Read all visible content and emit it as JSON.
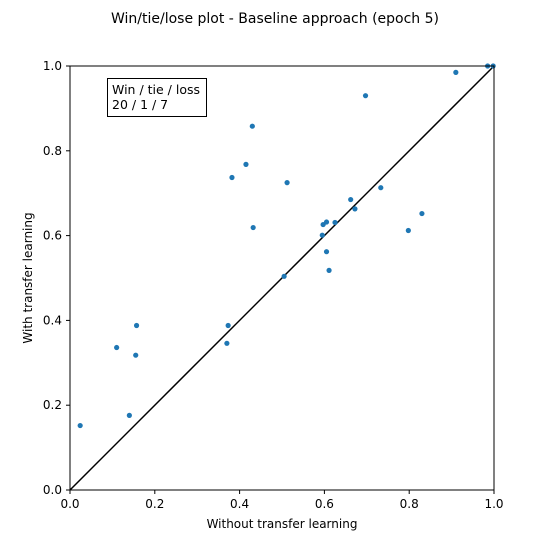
{
  "chart_data": {
    "type": "scatter",
    "title": "Win/tie/lose plot - Baseline approach (epoch 5)",
    "xlabel": "Without transfer learning",
    "ylabel": "With transfer learning",
    "xlim": [
      0,
      1
    ],
    "ylim": [
      0,
      1
    ],
    "xticks": [
      0.0,
      0.2,
      0.4,
      0.6,
      0.8,
      1.0
    ],
    "yticks": [
      0.0,
      0.2,
      0.4,
      0.6,
      0.8,
      1.0
    ],
    "xtick_labels": [
      "0.0",
      "0.2",
      "0.4",
      "0.6",
      "0.8",
      "1.0"
    ],
    "ytick_labels": [
      "0.0",
      "0.2",
      "0.4",
      "0.6",
      "0.8",
      "1.0"
    ],
    "grid": false,
    "reference_line": "diagonal y = x",
    "point_color": "#1f77b4",
    "line_color": "#000000",
    "annotation": {
      "line1": "Win / tie / loss",
      "line2": "20 / 1 / 7",
      "placement": "top-left"
    },
    "points": [
      {
        "x": 0.024,
        "y": 0.152
      },
      {
        "x": 0.11,
        "y": 0.336
      },
      {
        "x": 0.14,
        "y": 0.176
      },
      {
        "x": 0.155,
        "y": 0.318
      },
      {
        "x": 0.157,
        "y": 0.388
      },
      {
        "x": 0.37,
        "y": 0.346
      },
      {
        "x": 0.373,
        "y": 0.388
      },
      {
        "x": 0.382,
        "y": 0.737
      },
      {
        "x": 0.415,
        "y": 0.768
      },
      {
        "x": 0.43,
        "y": 0.858
      },
      {
        "x": 0.432,
        "y": 0.619
      },
      {
        "x": 0.505,
        "y": 0.504
      },
      {
        "x": 0.512,
        "y": 0.725
      },
      {
        "x": 0.595,
        "y": 0.601
      },
      {
        "x": 0.597,
        "y": 0.626
      },
      {
        "x": 0.605,
        "y": 0.632
      },
      {
        "x": 0.605,
        "y": 0.562
      },
      {
        "x": 0.611,
        "y": 0.518
      },
      {
        "x": 0.625,
        "y": 0.631
      },
      {
        "x": 0.662,
        "y": 0.685
      },
      {
        "x": 0.672,
        "y": 0.663
      },
      {
        "x": 0.697,
        "y": 0.93
      },
      {
        "x": 0.733,
        "y": 0.713
      },
      {
        "x": 0.798,
        "y": 0.612
      },
      {
        "x": 0.83,
        "y": 0.652
      },
      {
        "x": 0.91,
        "y": 0.985
      },
      {
        "x": 0.985,
        "y": 1.0
      },
      {
        "x": 0.998,
        "y": 1.0
      }
    ]
  }
}
